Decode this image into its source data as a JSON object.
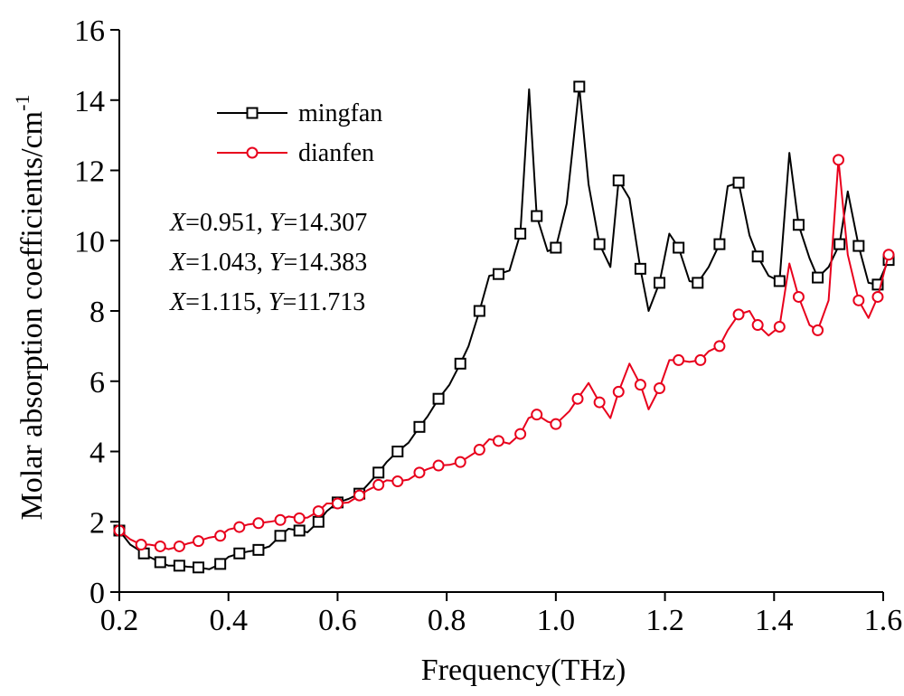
{
  "chart_data": {
    "type": "line",
    "title": "",
    "xlabel": "Frequency(THz)",
    "ylabel": "Molar absorption coefficients/cm",
    "ylabel_sup": "-1",
    "xlim": [
      0.2,
      1.6
    ],
    "ylim": [
      0,
      16
    ],
    "xticks": [
      "0.2",
      "0.4",
      "0.6",
      "0.8",
      "1.0",
      "1.2",
      "1.4",
      "1.6"
    ],
    "yticks": [
      "0",
      "2",
      "4",
      "6",
      "8",
      "10",
      "12",
      "14",
      "16"
    ],
    "grid": false,
    "legend_position": "top-left",
    "series": [
      {
        "name": "mingfan",
        "color": "#000000",
        "marker": "square",
        "x": [
          0.2,
          0.22,
          0.245,
          0.255,
          0.275,
          0.29,
          0.31,
          0.325,
          0.345,
          0.365,
          0.385,
          0.4,
          0.42,
          0.435,
          0.455,
          0.475,
          0.495,
          0.51,
          0.53,
          0.545,
          0.565,
          0.58,
          0.6,
          0.62,
          0.64,
          0.655,
          0.675,
          0.69,
          0.71,
          0.73,
          0.75,
          0.765,
          0.785,
          0.805,
          0.825,
          0.84,
          0.86,
          0.878,
          0.895,
          0.915,
          0.935,
          0.951,
          0.965,
          0.985,
          1.0,
          1.02,
          1.043,
          1.06,
          1.08,
          1.1,
          1.115,
          1.135,
          1.155,
          1.17,
          1.19,
          1.208,
          1.225,
          1.245,
          1.26,
          1.28,
          1.3,
          1.315,
          1.335,
          1.355,
          1.37,
          1.39,
          1.41,
          1.428,
          1.445,
          1.465,
          1.48,
          1.5,
          1.52,
          1.535,
          1.555,
          1.573,
          1.59,
          1.61
        ],
        "y": [
          1.75,
          1.35,
          1.1,
          1.0,
          0.85,
          0.75,
          0.75,
          0.72,
          0.7,
          0.65,
          0.8,
          1.0,
          1.1,
          1.15,
          1.2,
          1.3,
          1.6,
          1.8,
          1.75,
          1.7,
          2.0,
          2.3,
          2.55,
          2.65,
          2.8,
          3.05,
          3.4,
          3.7,
          4.0,
          4.25,
          4.7,
          5.0,
          5.5,
          5.9,
          6.5,
          7.0,
          8.0,
          9.0,
          9.05,
          9.15,
          10.2,
          14.307,
          10.7,
          9.7,
          9.8,
          11.05,
          14.383,
          11.6,
          9.9,
          9.25,
          11.713,
          11.2,
          9.2,
          8.0,
          8.8,
          10.2,
          9.8,
          8.85,
          8.8,
          9.25,
          9.9,
          11.55,
          11.65,
          10.15,
          9.55,
          9.0,
          8.85,
          12.5,
          10.45,
          9.5,
          8.95,
          9.25,
          9.9,
          11.4,
          9.85,
          8.8,
          8.75,
          9.45
        ]
      },
      {
        "name": "dianfen",
        "color": "#e8001c",
        "marker": "circle",
        "x": [
          0.2,
          0.22,
          0.24,
          0.255,
          0.275,
          0.29,
          0.31,
          0.325,
          0.345,
          0.365,
          0.385,
          0.4,
          0.42,
          0.435,
          0.455,
          0.475,
          0.495,
          0.51,
          0.53,
          0.545,
          0.565,
          0.58,
          0.6,
          0.62,
          0.64,
          0.655,
          0.675,
          0.69,
          0.71,
          0.73,
          0.75,
          0.765,
          0.785,
          0.805,
          0.825,
          0.84,
          0.86,
          0.878,
          0.895,
          0.915,
          0.935,
          0.95,
          0.965,
          0.985,
          1.0,
          1.025,
          1.04,
          1.06,
          1.08,
          1.1,
          1.115,
          1.135,
          1.155,
          1.17,
          1.19,
          1.208,
          1.225,
          1.245,
          1.265,
          1.28,
          1.3,
          1.315,
          1.335,
          1.355,
          1.37,
          1.39,
          1.41,
          1.428,
          1.445,
          1.465,
          1.48,
          1.5,
          1.518,
          1.535,
          1.555,
          1.573,
          1.59,
          1.61
        ],
        "y": [
          1.75,
          1.5,
          1.35,
          1.35,
          1.3,
          1.22,
          1.3,
          1.38,
          1.45,
          1.55,
          1.6,
          1.78,
          1.85,
          1.92,
          1.96,
          2.0,
          2.05,
          2.15,
          2.1,
          2.12,
          2.3,
          2.52,
          2.52,
          2.55,
          2.75,
          2.9,
          3.05,
          3.18,
          3.15,
          3.2,
          3.4,
          3.5,
          3.6,
          3.62,
          3.7,
          3.85,
          4.05,
          4.35,
          4.3,
          4.22,
          4.5,
          4.95,
          5.05,
          4.85,
          4.78,
          5.15,
          5.5,
          5.95,
          5.4,
          4.95,
          5.7,
          6.5,
          5.9,
          5.2,
          5.8,
          6.6,
          6.6,
          6.55,
          6.6,
          6.85,
          7.0,
          7.45,
          7.9,
          8.0,
          7.6,
          7.3,
          7.55,
          9.35,
          8.4,
          7.6,
          7.45,
          8.3,
          12.3,
          9.6,
          8.3,
          7.8,
          8.4,
          9.6
        ]
      }
    ],
    "annotations": [
      {
        "x_label": "X",
        "x_value": "=0.951, ",
        "y_label": "Y",
        "y_value": "=14.307"
      },
      {
        "x_label": "X",
        "x_value": "=1.043, ",
        "y_label": "Y",
        "y_value": "=14.383"
      },
      {
        "x_label": "X",
        "x_value": "=1.115, ",
        "y_label": "Y",
        "y_value": "=11.713"
      }
    ]
  }
}
